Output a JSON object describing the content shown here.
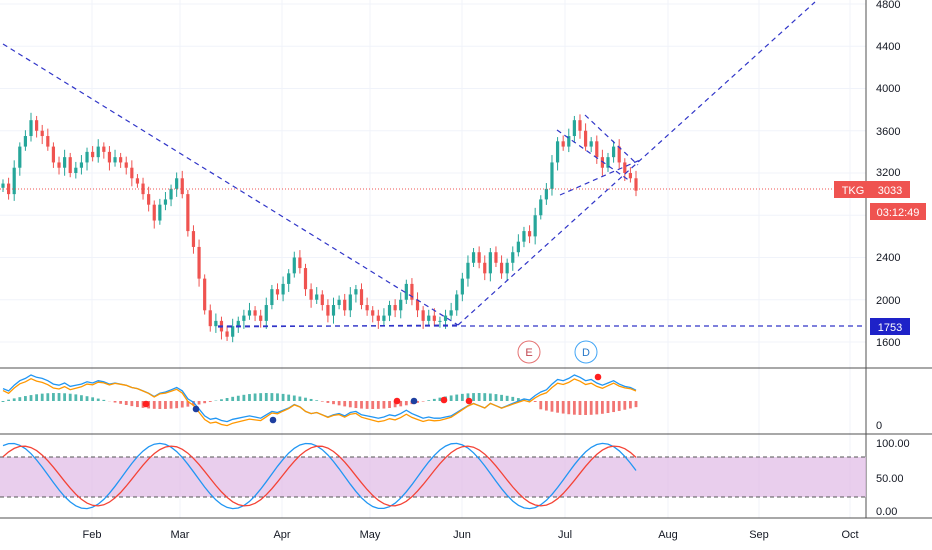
{
  "chart_data": {
    "type": "candlestick",
    "symbol": "TKG",
    "last_price": "3033",
    "countdown": "03:12:49",
    "support_level": "1753",
    "event_markers": [
      "E",
      "D"
    ],
    "x_ticks": [
      "Feb",
      "Mar",
      "Apr",
      "May",
      "Jun",
      "Jul",
      "Aug",
      "Sep",
      "Oct"
    ],
    "price_axis": {
      "ticks": [
        "4800",
        "4400",
        "4000",
        "3600",
        "3200",
        "2400",
        "2000",
        "1600"
      ],
      "range": [
        1500,
        4850
      ]
    },
    "candles_close": [
      3100,
      3000,
      3250,
      3450,
      3550,
      3700,
      3600,
      3550,
      3450,
      3300,
      3250,
      3350,
      3200,
      3250,
      3300,
      3400,
      3350,
      3450,
      3400,
      3300,
      3350,
      3300,
      3250,
      3150,
      3100,
      3000,
      2900,
      2750,
      2900,
      2950,
      3050,
      3150,
      3000,
      2650,
      2500,
      2200,
      1900,
      1750,
      1800,
      1700,
      1650,
      1750,
      1800,
      1850,
      1900,
      1850,
      1800,
      1950,
      2100,
      2050,
      2150,
      2250,
      2400,
      2300,
      2100,
      2000,
      2050,
      1950,
      1850,
      1950,
      2000,
      1900,
      2050,
      2100,
      1950,
      1900,
      1850,
      1800,
      1850,
      1950,
      1900,
      2000,
      2150,
      2000,
      1900,
      1800,
      1850,
      1800,
      1800,
      1850,
      1900,
      2050,
      2200,
      2350,
      2450,
      2350,
      2250,
      2450,
      2350,
      2250,
      2350,
      2450,
      2550,
      2650,
      2600,
      2800,
      2950,
      3050,
      3300,
      3500,
      3450,
      3550,
      3700,
      3600,
      3450,
      3500,
      3350,
      3250,
      3350,
      3450,
      3300,
      3200,
      3150,
      3033
    ],
    "trend_lines": [
      {
        "from": [
          "Jan",
          4380
        ],
        "to": [
          "Jun",
          1780
        ]
      },
      {
        "from": [
          "Jun",
          1780
        ],
        "to": [
          "Sep",
          4850
        ]
      }
    ],
    "macd": {
      "ticks": [
        "0"
      ],
      "histogram": "green-red",
      "markers": [
        "cross-up",
        "cross-down"
      ]
    },
    "stochastic": {
      "ticks": [
        "100.00",
        "50.00",
        "0.00"
      ],
      "overbought": 80,
      "oversold": 20,
      "range": [
        0,
        100
      ]
    }
  }
}
